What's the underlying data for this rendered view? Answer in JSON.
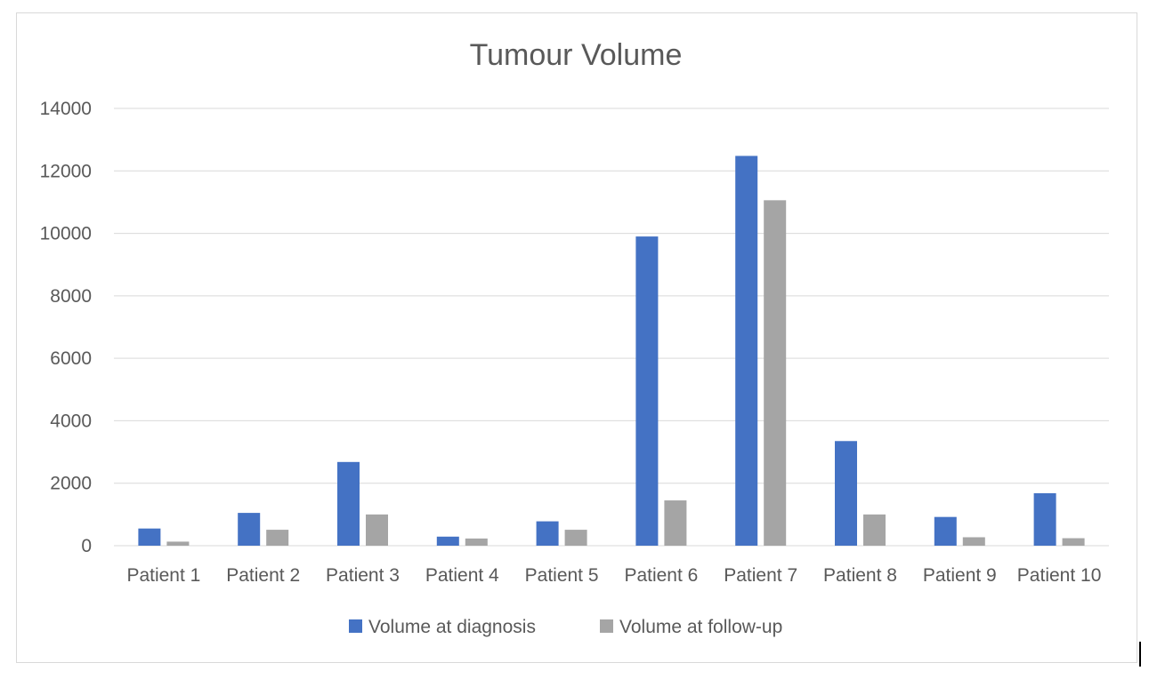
{
  "chart_data": {
    "type": "bar",
    "title": "Tumour Volume",
    "xlabel": "",
    "ylabel": "",
    "categories": [
      "Patient 1",
      "Patient 2",
      "Patient 3",
      "Patient 4",
      "Patient 5",
      "Patient 6",
      "Patient 7",
      "Patient 8",
      "Patient 9",
      "Patient 10"
    ],
    "series": [
      {
        "name": "Volume at diagnosis",
        "color": "#4472c4",
        "values": [
          550,
          1050,
          2680,
          290,
          780,
          9900,
          12480,
          3350,
          920,
          1680
        ]
      },
      {
        "name": "Volume at follow-up",
        "color": "#a5a5a5",
        "values": [
          130,
          510,
          1000,
          230,
          510,
          1450,
          11060,
          1000,
          270,
          240
        ]
      }
    ],
    "ylim": [
      0,
      14000
    ],
    "yticks": [
      "0",
      "2000",
      "4000",
      "6000",
      "8000",
      "10000",
      "12000",
      "14000"
    ],
    "grid": true,
    "legend_position": "bottom"
  }
}
